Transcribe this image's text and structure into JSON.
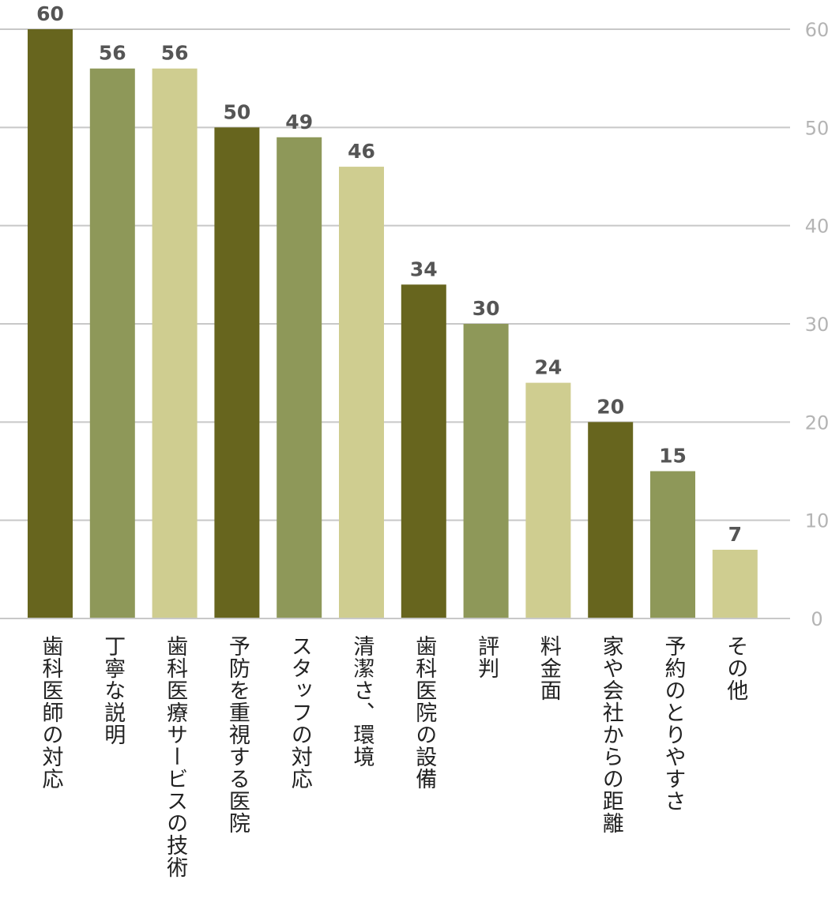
{
  "chart_data": {
    "type": "bar",
    "categories": [
      "歯科医師の対応",
      "丁寧な説明",
      "歯科医療サービスの技術",
      "予防を重視する医院",
      "スタッフの対応",
      "清潔さ、環境",
      "歯科医院の設備",
      "評判",
      "料金面",
      "家や会社からの距離",
      "予約のとりやすさ",
      "その他"
    ],
    "values": [
      60,
      56,
      56,
      50,
      49,
      46,
      34,
      30,
      24,
      20,
      15,
      7
    ],
    "value_labels": [
      "60",
      "56",
      "56",
      "50",
      "49",
      "46",
      "34",
      "30",
      "24",
      "20",
      "15",
      "7"
    ],
    "ylim": [
      0,
      60
    ],
    "yticks": [
      "0",
      "10",
      "20",
      "30",
      "40",
      "50",
      "60"
    ],
    "y_axis_position": "right",
    "grid": true,
    "bar_colors": [
      "#67651e",
      "#8e9859",
      "#cfcd90"
    ]
  }
}
